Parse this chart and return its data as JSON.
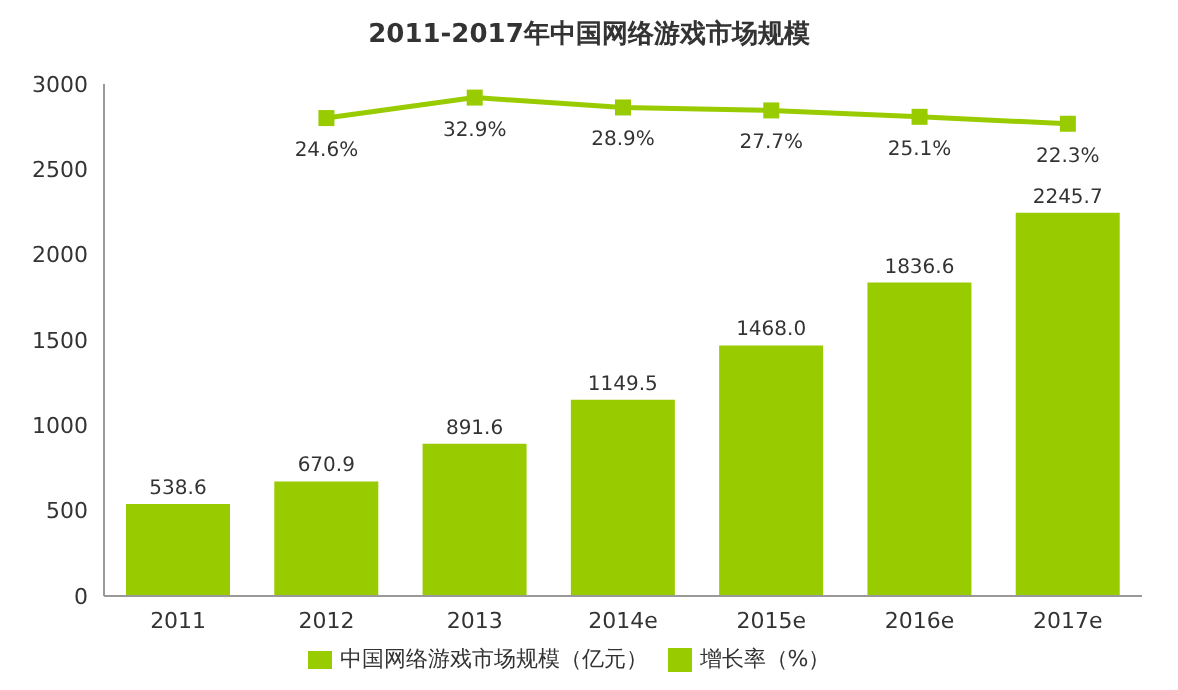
{
  "chart_data": {
    "type": "bar",
    "title": "2011-2017年中国网络游戏市场规模",
    "categories": [
      "2011",
      "2012",
      "2013",
      "2014e",
      "2015e",
      "2016e",
      "2017e"
    ],
    "series": [
      {
        "name": "中国网络游戏市场规模（亿元）",
        "color": "#99cc00",
        "values": [
          538.6,
          670.9,
          891.6,
          1149.5,
          1468.0,
          1836.6,
          2245.7
        ],
        "value_labels": [
          "538.6",
          "670.9",
          "891.6",
          "1149.5",
          "1468.0",
          "1836.6",
          "2245.7"
        ]
      },
      {
        "name": "增长率（%）",
        "type": "line",
        "axis": "y2",
        "color": "#99cc00",
        "values": [
          null,
          24.6,
          32.9,
          28.9,
          27.7,
          25.1,
          22.3
        ],
        "value_labels": [
          null,
          "24.6%",
          "32.9%",
          "28.9%",
          "27.7%",
          "25.1%",
          "22.3%"
        ]
      }
    ],
    "ylim": [
      0,
      3000
    ],
    "yticks": [
      0,
      500,
      1000,
      1500,
      2000,
      2500,
      3000
    ],
    "y2lim": [
      -169,
      38.4
    ],
    "legend": "bottom",
    "marker": "square",
    "line_style": "solid",
    "grid": false
  }
}
